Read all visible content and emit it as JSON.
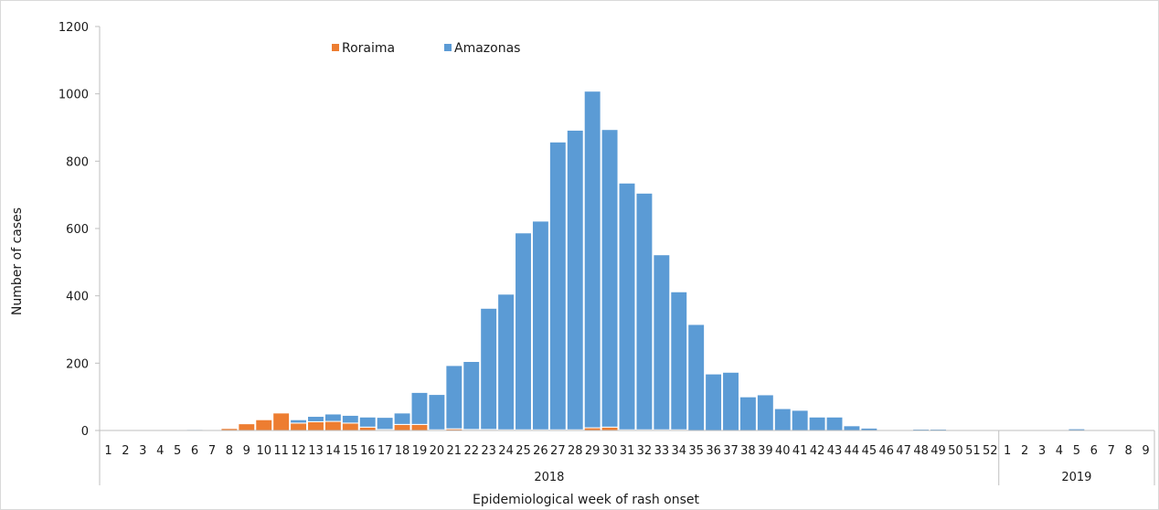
{
  "chart_data": {
    "type": "bar",
    "stacked": true,
    "ylabel": "Number of cases",
    "xlabel": "Epidemiological week of rash onset",
    "ylim": [
      0,
      1200
    ],
    "yticks": [
      0,
      200,
      400,
      600,
      800,
      1000,
      1200
    ],
    "grid": false,
    "legend_position": "top-center",
    "groups": [
      {
        "label": "2018",
        "weeks": 52
      },
      {
        "label": "2019",
        "weeks": 9
      }
    ],
    "categories": [
      "1",
      "2",
      "3",
      "4",
      "5",
      "6",
      "7",
      "8",
      "9",
      "10",
      "11",
      "12",
      "13",
      "14",
      "15",
      "16",
      "17",
      "18",
      "19",
      "20",
      "21",
      "22",
      "23",
      "24",
      "25",
      "26",
      "27",
      "28",
      "29",
      "30",
      "31",
      "32",
      "33",
      "34",
      "35",
      "36",
      "37",
      "38",
      "39",
      "40",
      "41",
      "42",
      "43",
      "44",
      "45",
      "46",
      "47",
      "48",
      "49",
      "50",
      "51",
      "52",
      "1",
      "2",
      "3",
      "4",
      "5",
      "6",
      "7",
      "8",
      "9"
    ],
    "series": [
      {
        "name": "Roraima",
        "color": "#ED7D31",
        "values": [
          0,
          0,
          0,
          0,
          0,
          1,
          2,
          6,
          20,
          32,
          52,
          22,
          26,
          27,
          22,
          10,
          3,
          18,
          18,
          2,
          5,
          3,
          3,
          2,
          2,
          2,
          2,
          2,
          8,
          10,
          2,
          2,
          2,
          2,
          0,
          0,
          0,
          0,
          0,
          0,
          0,
          0,
          0,
          0,
          0,
          0,
          0,
          0,
          0,
          0,
          0,
          0,
          0,
          0,
          0,
          0,
          0,
          0,
          0,
          0,
          0
        ]
      },
      {
        "name": "Amazonas",
        "color": "#5B9BD5",
        "values": [
          0,
          0,
          0,
          0,
          0,
          3,
          2,
          0,
          0,
          0,
          0,
          10,
          16,
          22,
          23,
          30,
          36,
          34,
          95,
          105,
          188,
          202,
          360,
          403,
          585,
          620,
          855,
          890,
          1000,
          884,
          733,
          703,
          520,
          410,
          315,
          168,
          173,
          100,
          106,
          65,
          60,
          40,
          40,
          14,
          7,
          2,
          2,
          4,
          4,
          1,
          1,
          1,
          0,
          0,
          0,
          0,
          5,
          0,
          0,
          0,
          0
        ]
      }
    ]
  }
}
